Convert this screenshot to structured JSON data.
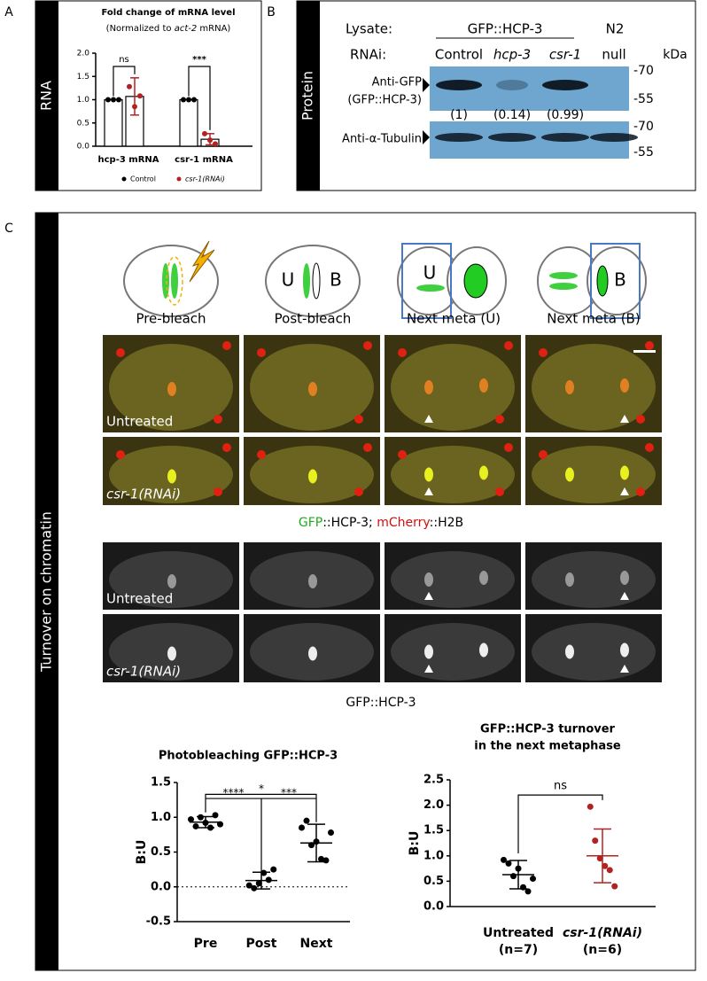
{
  "panel_labels": [
    "A",
    "B",
    "C"
  ],
  "chart_data": [
    {
      "type": "bar",
      "side_label": "RNA",
      "title": "Fold change of mRNA level",
      "subtitle": [
        "(Normalized to ",
        "act-2",
        " mRNA)"
      ],
      "categories": [
        "hcp-3 mRNA",
        "csr-1 mRNA"
      ],
      "series": [
        {
          "name": "Control",
          "color": "#000000",
          "values": [
            1,
            1
          ],
          "errors": [
            0,
            0
          ],
          "points": [
            [
              1,
              1,
              1
            ],
            [
              1,
              1,
              1
            ]
          ]
        },
        {
          "name": "csr-1(RNAi)",
          "color": "#b22222",
          "values": [
            1.07,
            0.15
          ],
          "errors": [
            0.4,
            0.12
          ],
          "points": [
            [
              1.28,
              0.85,
              1.08
            ],
            [
              0.27,
              0.13,
              0.05
            ]
          ]
        }
      ],
      "ylim": [
        0,
        2
      ],
      "yticks": [
        {
          "value": 0,
          "label": "0.0"
        },
        {
          "value": 0.5,
          "label": "0.5"
        },
        {
          "value": 1,
          "label": "1.0"
        },
        {
          "value": 1.5,
          "label": "1.5"
        },
        {
          "value": 2,
          "label": "2.0"
        }
      ],
      "significance": [
        "ns",
        "***"
      ]
    },
    {
      "type": "dot",
      "title": "Photobleaching GFP::HCP-3",
      "y_label": "B:U",
      "categories": [
        "Pre",
        "Post",
        "Next"
      ],
      "colors": [
        "#000000",
        "#000000",
        "#000000"
      ],
      "values": [
        0.93,
        0.09,
        0.63
      ],
      "errors": [
        0.08,
        0.12,
        0.27
      ],
      "points": [
        [
          0.97,
          0.87,
          1.0,
          0.92,
          0.85,
          1.03,
          0.9
        ],
        [
          0.02,
          -0.02,
          0.05,
          0.2,
          0.1,
          0.25
        ],
        [
          0.85,
          0.95,
          0.6,
          0.65,
          0.4,
          0.38,
          0.78
        ]
      ],
      "ylim": [
        -0.5,
        1.5
      ],
      "yticks": [
        {
          "value": -0.5,
          "label": "-0.5"
        },
        {
          "value": 0,
          "label": "0.0"
        },
        {
          "value": 0.5,
          "label": "0.5"
        },
        {
          "value": 1,
          "label": "1.0"
        },
        {
          "value": 1.5,
          "label": "1.5"
        }
      ],
      "zero_line": true,
      "significance": [
        "****",
        "*",
        "***"
      ]
    },
    {
      "type": "dot",
      "title": [
        "GFP::HCP-3 turnover",
        "in the next metaphase"
      ],
      "y_label": "B:U",
      "categories": [
        "Untreated",
        "csr-1(RNAi)"
      ],
      "sample_sizes": [
        "(n=7)",
        "(n=6)"
      ],
      "colors": [
        "#000000",
        "#b22222"
      ],
      "values": [
        0.63,
        1.0
      ],
      "errors": [
        0.28,
        0.53
      ],
      "points": [
        [
          0.92,
          0.85,
          0.6,
          0.75,
          0.38,
          0.3,
          0.55
        ],
        [
          1.97,
          1.3,
          0.95,
          0.8,
          0.72,
          0.4
        ]
      ],
      "ylim": [
        0,
        2.5
      ],
      "yticks": [
        {
          "value": 0,
          "label": "0.0"
        },
        {
          "value": 0.5,
          "label": "0.5"
        },
        {
          "value": 1,
          "label": "1.0"
        },
        {
          "value": 1.5,
          "label": "1.5"
        },
        {
          "value": 2,
          "label": "2.0"
        },
        {
          "value": 2.5,
          "label": "2.5"
        }
      ],
      "zero_line": false,
      "significance": [
        "ns"
      ]
    }
  ],
  "blot": {
    "side_label": "Protein",
    "lysate_label": "Lysate:",
    "group": "GFP::HCP-3",
    "n2": "N2",
    "rnai_label": "RNAi:",
    "lanes": [
      "Control",
      "hcp-3",
      "csr-1",
      "null"
    ],
    "kda": "kDa",
    "gfp_label": [
      "Anti-GFP",
      "(GFP::HCP-3)"
    ],
    "gfp_markers": [
      "-70",
      "-55"
    ],
    "quant": [
      "(1)",
      "(0.14)",
      "(0.99)"
    ],
    "tubulin_label": "Anti-α-Tubulin",
    "tubulin_markers": [
      "-70",
      "-55"
    ]
  },
  "imaging": {
    "side_label": "Turnover on chromatin",
    "diagram_labels": [
      "U",
      "B",
      "U",
      "B"
    ],
    "columns": [
      "Pre-bleach",
      "Post-bleach",
      "Next meta (U)",
      "Next meta (B)"
    ],
    "rows": [
      "Untreated",
      "csr-1(RNAi)"
    ],
    "merge_legend": [
      "GFP",
      "::HCP-3;  ",
      "mCherry",
      "::H2B"
    ],
    "gray_caption": "GFP::HCP-3"
  }
}
